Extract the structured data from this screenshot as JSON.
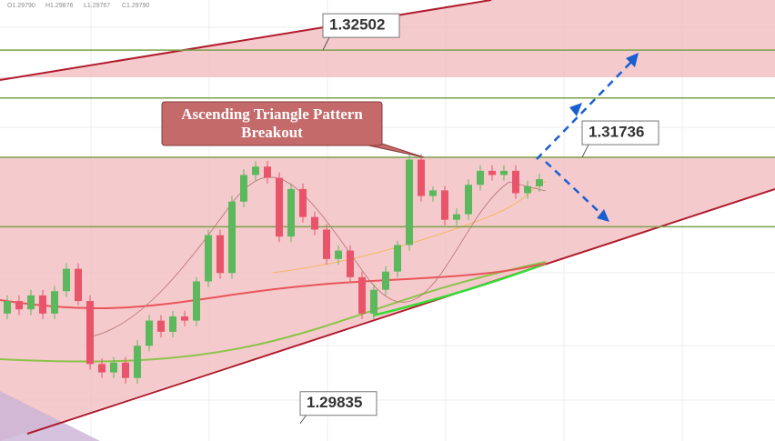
{
  "chart_data": {
    "type": "candlestick",
    "ohlc_header": [
      {
        "value": 1.2979,
        "label": "O1.29790"
      },
      {
        "value": 1.29876,
        "label": "H1.29876"
      },
      {
        "value": 1.29767,
        "label": "L1.29767"
      },
      {
        "value": 1.2979,
        "label": "C1.29790"
      }
    ],
    "annotation": [
      "Ascending Triangle Pattern",
      "Breakout"
    ],
    "price_labels": [
      1.32502,
      1.31736,
      1.29835
    ],
    "levels": [
      1.32502,
      1.3216,
      1.31736,
      1.3124
    ],
    "ylim": [
      1.2971,
      1.3286
    ],
    "up_color": "#5cb85c",
    "down_color": "#e8556a",
    "open": [
      1.3062,
      1.3071,
      1.3065,
      1.3075,
      1.3062,
      1.3078,
      1.3094,
      1.3071,
      1.3026,
      1.302,
      1.3027,
      1.3016,
      1.3039,
      1.3057,
      1.3049,
      1.306,
      1.3057,
      1.3085,
      1.3118,
      1.3091,
      1.3142,
      1.3161,
      1.3167,
      1.3159,
      1.3117,
      1.3151,
      1.3131,
      1.3122,
      1.3101,
      1.3107,
      1.3088,
      1.3062,
      1.3079,
      1.3092,
      1.3111,
      1.3172,
      1.3146,
      1.315,
      1.3129,
      1.3133,
      1.3154,
      1.3164,
      1.3161,
      1.3164,
      1.3148,
      1.3153
    ],
    "high": [
      1.3075,
      1.3075,
      1.3079,
      1.3079,
      1.3082,
      1.3098,
      1.3098,
      1.3075,
      1.303,
      1.3031,
      1.3031,
      1.3043,
      1.3061,
      1.3061,
      1.3064,
      1.3064,
      1.3088,
      1.3122,
      1.3122,
      1.3146,
      1.3165,
      1.3171,
      1.3171,
      1.3163,
      1.3155,
      1.3155,
      1.3135,
      1.3126,
      1.3111,
      1.3111,
      1.3092,
      1.3083,
      1.3096,
      1.3114,
      1.3176,
      1.3176,
      1.3153,
      1.3153,
      1.3137,
      1.3158,
      1.3168,
      1.3168,
      1.3168,
      1.3168,
      1.3157,
      1.3162
    ],
    "low": [
      1.3058,
      1.3061,
      1.3061,
      1.3058,
      1.3058,
      1.3074,
      1.3068,
      1.3022,
      1.3016,
      1.3016,
      1.3012,
      1.3012,
      1.3035,
      1.3045,
      1.3045,
      1.3053,
      1.3053,
      1.3081,
      1.3087,
      1.3087,
      1.3138,
      1.3157,
      1.3155,
      1.3113,
      1.3113,
      1.3127,
      1.3118,
      1.3097,
      1.3097,
      1.3084,
      1.3058,
      1.3058,
      1.3075,
      1.3088,
      1.3107,
      1.3142,
      1.3142,
      1.3125,
      1.3125,
      1.3129,
      1.315,
      1.3157,
      1.3157,
      1.3144,
      1.3144,
      1.3149
    ],
    "close": [
      1.3071,
      1.3065,
      1.3075,
      1.3062,
      1.3078,
      1.3094,
      1.3071,
      1.3026,
      1.302,
      1.3027,
      1.3016,
      1.3039,
      1.3057,
      1.3049,
      1.306,
      1.3057,
      1.3085,
      1.3118,
      1.3091,
      1.3142,
      1.3161,
      1.3167,
      1.3159,
      1.3117,
      1.3151,
      1.3131,
      1.3122,
      1.3101,
      1.3107,
      1.3088,
      1.3062,
      1.3079,
      1.3092,
      1.3111,
      1.3172,
      1.3146,
      1.315,
      1.3129,
      1.3133,
      1.3154,
      1.3164,
      1.3161,
      1.3164,
      1.3148,
      1.3153,
      1.3158
    ]
  }
}
